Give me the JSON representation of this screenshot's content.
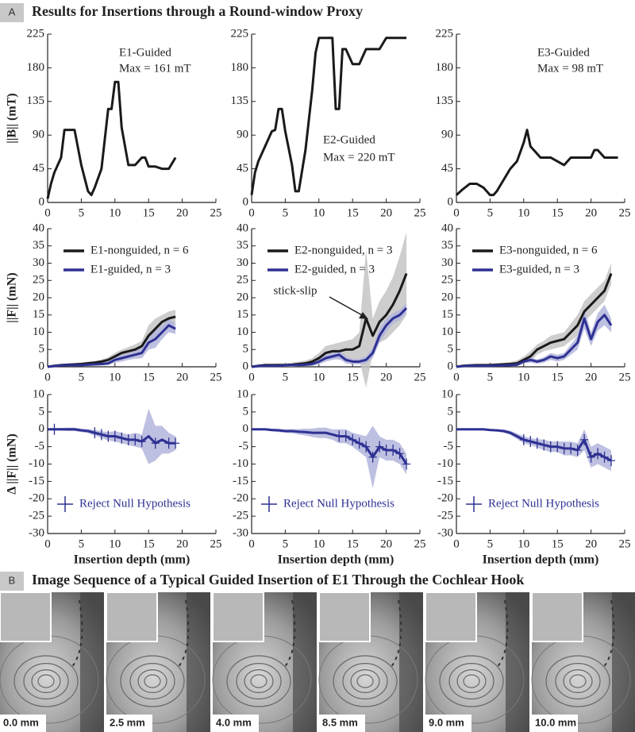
{
  "panel_a": {
    "label": "A",
    "title": "Results for Insertions through a Round-window Proxy"
  },
  "panel_b": {
    "label": "B",
    "title": "Image Sequence of a Typical Guided Insertion of E1 Through the Cochlear Hook",
    "captions": [
      "0.0 mm",
      "2.5 mm",
      "4.0 mm",
      "8.5 mm",
      "9.0 mm",
      "10.0 mm"
    ]
  },
  "chart_data": [
    {
      "type": "line",
      "ylabel": "||B|| (mT)",
      "annotations": [
        "E1-Guided",
        "Max = 161 mT"
      ],
      "x": [
        0,
        0.5,
        1,
        2,
        2.5,
        4,
        5,
        6,
        6.5,
        7,
        8,
        9,
        9.5,
        10,
        10.5,
        11,
        12,
        13,
        14,
        14.5,
        15,
        16,
        17,
        18,
        19
      ],
      "series": [
        {
          "color": "#1a1a1a",
          "values": [
            5,
            25,
            40,
            60,
            97,
            97,
            50,
            15,
            10,
            20,
            45,
            125,
            125,
            161,
            161,
            100,
            50,
            50,
            60,
            60,
            48,
            48,
            45,
            45,
            60
          ]
        }
      ],
      "xlim": [
        0,
        25
      ],
      "xticks": [
        0,
        5,
        10,
        15,
        20,
        25
      ],
      "ylim": [
        0,
        225
      ],
      "yticks": [
        0,
        45,
        90,
        135,
        180,
        225
      ]
    },
    {
      "type": "line",
      "annotations": [
        "E2-Guided",
        "Max = 220 mT"
      ],
      "x": [
        0,
        0.5,
        1,
        2,
        3,
        3.5,
        4,
        4.5,
        5,
        6,
        6.5,
        7,
        8,
        9,
        9.5,
        10,
        11,
        12,
        12.5,
        13,
        13.5,
        14,
        15,
        16,
        17,
        18,
        19,
        20,
        21,
        23
      ],
      "series": [
        {
          "color": "#1a1a1a",
          "values": [
            10,
            40,
            55,
            75,
            95,
            97,
            125,
            125,
            95,
            50,
            15,
            15,
            70,
            150,
            200,
            220,
            220,
            220,
            125,
            125,
            205,
            205,
            185,
            185,
            205,
            205,
            205,
            220,
            220,
            220
          ]
        }
      ],
      "xlim": [
        0,
        25
      ],
      "xticks": [
        0,
        5,
        10,
        15,
        20,
        25
      ],
      "ylim": [
        0,
        225
      ],
      "yticks": [
        0,
        45,
        90,
        135,
        180,
        225
      ]
    },
    {
      "type": "line",
      "annotations": [
        "E3-Guided",
        "Max = 98 mT"
      ],
      "x": [
        0,
        1,
        2,
        3,
        4,
        5,
        5.5,
        6,
        7,
        8,
        9,
        10,
        10.5,
        11,
        12,
        12.5,
        13,
        14,
        15,
        16,
        17,
        18,
        19,
        20,
        20.5,
        21,
        22,
        23,
        24
      ],
      "series": [
        {
          "color": "#1a1a1a",
          "values": [
            10,
            18,
            25,
            25,
            20,
            10,
            10,
            15,
            30,
            45,
            55,
            80,
            97,
            75,
            65,
            60,
            60,
            60,
            55,
            50,
            60,
            60,
            60,
            60,
            70,
            70,
            60,
            60,
            60
          ]
        }
      ],
      "xlim": [
        0,
        25
      ],
      "xticks": [
        0,
        5,
        10,
        15,
        20,
        25
      ],
      "ylim": [
        0,
        225
      ],
      "yticks": [
        0,
        45,
        90,
        135,
        180,
        225
      ]
    },
    {
      "type": "line",
      "ylabel": "||F|| (mN)",
      "x": [
        0,
        1,
        2,
        3,
        4,
        5,
        6,
        7,
        8,
        9,
        10,
        11,
        12,
        13,
        14,
        15,
        16,
        17,
        18,
        19
      ],
      "series": [
        {
          "name": "E1-nonguided, n = 6",
          "color": "#1a1a1a",
          "band_color": "#c4c4c4",
          "values": [
            0,
            0.3,
            0.5,
            0.6,
            0.7,
            0.8,
            1,
            1.2,
            1.5,
            2,
            3,
            4,
            4.5,
            5,
            6,
            9,
            11,
            13,
            14,
            14.5
          ],
          "band": [
            0,
            0.2,
            0.3,
            0.3,
            0.4,
            0.4,
            0.5,
            0.5,
            0.6,
            0.8,
            1,
            1,
            1.2,
            1.5,
            1.5,
            3,
            3,
            2,
            2,
            2
          ]
        },
        {
          "name": "E1-guided, n = 3",
          "color": "#2e3192",
          "band_color": "#b3b5dc",
          "values": [
            0,
            0.2,
            0.4,
            0.5,
            0.5,
            0.5,
            0.6,
            0.7,
            0.8,
            1,
            2,
            2.5,
            3,
            3.5,
            4,
            7,
            8,
            10,
            12,
            11
          ],
          "band": [
            0,
            0.1,
            0.2,
            0.2,
            0.2,
            0.3,
            0.3,
            0.3,
            0.4,
            0.5,
            0.8,
            1,
            1,
            1.2,
            1.5,
            2,
            2.5,
            2,
            2,
            1.5
          ]
        }
      ],
      "xlim": [
        0,
        25
      ],
      "xticks": [
        0,
        5,
        10,
        15,
        20,
        25
      ],
      "ylim": [
        0,
        40
      ],
      "yticks": [
        0,
        5,
        10,
        15,
        20,
        25,
        30,
        35,
        40
      ]
    },
    {
      "type": "line",
      "annotations": [
        "stick-slip"
      ],
      "x": [
        0,
        1,
        2,
        3,
        4,
        5,
        6,
        7,
        8,
        9,
        10,
        11,
        12,
        13,
        14,
        15,
        16,
        17,
        18,
        19,
        20,
        21,
        22,
        23
      ],
      "series": [
        {
          "name": "E2-nonguided, n = 3",
          "color": "#1a1a1a",
          "band_color": "#c4c4c4",
          "values": [
            0,
            0.3,
            0.5,
            0.5,
            0.5,
            0.5,
            0.6,
            0.8,
            1,
            1.5,
            2.5,
            4,
            4.5,
            4.5,
            5,
            5,
            6,
            14,
            9,
            13,
            15,
            18,
            22,
            27
          ],
          "band": [
            0,
            0.3,
            0.4,
            0.4,
            0.5,
            0.5,
            0.6,
            0.7,
            0.8,
            1,
            1.5,
            2,
            2,
            2.5,
            2.5,
            3,
            4,
            20,
            5,
            6,
            7,
            8,
            10,
            12
          ]
        },
        {
          "name": "E2-guided, n = 3",
          "color": "#2e3192",
          "band_color": "#b3b5dc",
          "values": [
            0,
            0.2,
            0.3,
            0.3,
            0.3,
            0.4,
            0.5,
            0.5,
            0.6,
            0.8,
            1.5,
            2.5,
            3,
            3.5,
            2,
            1.5,
            1.5,
            2,
            4,
            9,
            12,
            14,
            15,
            17
          ],
          "band": [
            0,
            0.1,
            0.2,
            0.2,
            0.2,
            0.2,
            0.3,
            0.3,
            0.4,
            0.5,
            0.8,
            1,
            1,
            1.2,
            1,
            0.8,
            0.8,
            1,
            1.5,
            2,
            2,
            1.5,
            1.5,
            1.5
          ]
        }
      ],
      "xlim": [
        0,
        25
      ],
      "xticks": [
        0,
        5,
        10,
        15,
        20,
        25
      ],
      "ylim": [
        0,
        40
      ],
      "yticks": [
        0,
        5,
        10,
        15,
        20,
        25,
        30,
        35,
        40
      ]
    },
    {
      "type": "line",
      "x": [
        0,
        1,
        2,
        3,
        4,
        5,
        6,
        7,
        8,
        9,
        10,
        11,
        12,
        13,
        14,
        15,
        16,
        17,
        18,
        19,
        20,
        21,
        22,
        23
      ],
      "series": [
        {
          "name": "E3-nonguided, n = 6",
          "color": "#1a1a1a",
          "band_color": "#c4c4c4",
          "values": [
            0,
            0.3,
            0.4,
            0.5,
            0.5,
            0.5,
            0.6,
            0.7,
            0.8,
            1,
            2,
            3,
            5,
            6,
            7,
            7.5,
            8,
            10,
            12,
            16,
            18,
            20,
            22,
            27
          ],
          "band": [
            0,
            0.2,
            0.3,
            0.3,
            0.3,
            0.4,
            0.4,
            0.5,
            0.6,
            0.8,
            1,
            1.5,
            1.5,
            1.5,
            2,
            2,
            2,
            2.5,
            3,
            3,
            3,
            3,
            3,
            3
          ]
        },
        {
          "name": "E3-guided, n = 3",
          "color": "#2e3192",
          "band_color": "#b3b5dc",
          "values": [
            0,
            0.2,
            0.3,
            0.3,
            0.3,
            0.3,
            0.4,
            0.4,
            0.5,
            0.6,
            1.5,
            2,
            1.5,
            2,
            3,
            2.5,
            3,
            5,
            7,
            14,
            8,
            13,
            15,
            12
          ],
          "band": [
            0,
            0.1,
            0.2,
            0.2,
            0.2,
            0.2,
            0.2,
            0.3,
            0.3,
            0.4,
            0.5,
            0.8,
            0.6,
            0.8,
            1,
            1,
            1,
            1.5,
            2,
            3,
            2,
            2.5,
            3,
            2
          ]
        }
      ],
      "xlim": [
        0,
        25
      ],
      "xticks": [
        0,
        5,
        10,
        15,
        20,
        25
      ],
      "ylim": [
        0,
        40
      ],
      "yticks": [
        0,
        5,
        10,
        15,
        20,
        25,
        30,
        35,
        40
      ]
    },
    {
      "type": "line",
      "ylabel": "Δ ||F|| (mN)",
      "xlabel": "Insertion depth (mm)",
      "x": [
        0,
        1,
        2,
        3,
        4,
        5,
        6,
        7,
        8,
        9,
        10,
        11,
        12,
        13,
        14,
        15,
        16,
        17,
        18,
        19
      ],
      "series": [
        {
          "color": "#2e3192",
          "band_color": "#b3b5dc",
          "values": [
            0,
            0,
            0,
            0,
            0,
            -0.3,
            -0.5,
            -1,
            -1.5,
            -2,
            -2,
            -2.5,
            -3,
            -3,
            -3.5,
            -2,
            -4,
            -3,
            -4,
            -4
          ],
          "band": [
            0,
            0.3,
            0.4,
            0.5,
            0.5,
            0.5,
            0.6,
            0.8,
            1,
            1.2,
            1.5,
            1.5,
            1.5,
            2,
            2,
            8,
            5,
            4,
            3,
            2
          ]
        }
      ],
      "markers": {
        "name": "Reject Null Hypothesis",
        "color": "#2e3192",
        "x": [
          1,
          7,
          8,
          9,
          10,
          11,
          12,
          13,
          14,
          16,
          18,
          19
        ],
        "values": [
          0,
          -1,
          -1.5,
          -2,
          -2,
          -2.5,
          -3,
          -3,
          -3.5,
          -4,
          -4,
          -4
        ]
      },
      "xlim": [
        0,
        25
      ],
      "xticks": [
        0,
        5,
        10,
        15,
        20,
        25
      ],
      "ylim": [
        -30,
        10
      ],
      "yticks": [
        -30,
        -25,
        -20,
        -15,
        -10,
        -5,
        0,
        5,
        10
      ]
    },
    {
      "type": "line",
      "xlabel": "Insertion depth (mm)",
      "x": [
        0,
        1,
        2,
        3,
        4,
        5,
        6,
        7,
        8,
        9,
        10,
        11,
        12,
        13,
        14,
        15,
        16,
        17,
        18,
        19,
        20,
        21,
        22,
        23
      ],
      "series": [
        {
          "color": "#2e3192",
          "band_color": "#b3b5dc",
          "values": [
            0,
            0,
            0,
            -0.2,
            -0.3,
            -0.5,
            -0.5,
            -0.7,
            -0.8,
            -1,
            -1,
            -1,
            -1.5,
            -2,
            -2,
            -3,
            -4,
            -5,
            -8,
            -5,
            -6,
            -6,
            -7,
            -10
          ],
          "band": [
            0,
            0.2,
            0.3,
            0.4,
            0.5,
            0.5,
            0.6,
            0.8,
            1,
            1.2,
            1.5,
            1.5,
            1.5,
            2,
            2,
            2,
            2.5,
            3,
            9,
            3,
            3,
            3,
            3,
            3
          ]
        }
      ],
      "markers": {
        "name": "Reject Null Hypothesis",
        "color": "#2e3192",
        "x": [
          13,
          14,
          15,
          16,
          17,
          18,
          19,
          20,
          21,
          22,
          23
        ],
        "values": [
          -2,
          -2,
          -3,
          -4,
          -5,
          -8,
          -5,
          -6,
          -6,
          -7,
          -10
        ]
      },
      "xlim": [
        0,
        25
      ],
      "xticks": [
        0,
        5,
        10,
        15,
        20,
        25
      ],
      "ylim": [
        -30,
        10
      ],
      "yticks": [
        -30,
        -25,
        -20,
        -15,
        -10,
        -5,
        0,
        5,
        10
      ]
    },
    {
      "type": "line",
      "xlabel": "Insertion depth (mm)",
      "x": [
        0,
        1,
        2,
        3,
        4,
        5,
        6,
        7,
        8,
        9,
        10,
        11,
        12,
        13,
        14,
        15,
        16,
        17,
        18,
        19,
        20,
        21,
        22,
        23
      ],
      "series": [
        {
          "color": "#2e3192",
          "band_color": "#b3b5dc",
          "values": [
            0,
            0,
            0,
            0,
            0,
            -0.2,
            -0.3,
            -0.5,
            -1,
            -2,
            -3,
            -3.5,
            -4,
            -4.5,
            -5,
            -5,
            -5.5,
            -5.5,
            -6,
            -3,
            -8,
            -7,
            -8,
            -9
          ],
          "band": [
            0,
            0.2,
            0.3,
            0.3,
            0.3,
            0.3,
            0.4,
            0.5,
            0.6,
            0.8,
            1,
            1,
            1.2,
            1.5,
            1.5,
            1.5,
            2,
            2,
            2,
            3,
            3,
            3,
            3,
            3
          ]
        }
      ],
      "markers": {
        "name": "Reject Null Hypothesis",
        "color": "#2e3192",
        "x": [
          10,
          11,
          12,
          13,
          14,
          15,
          16,
          17,
          18,
          19,
          20,
          21,
          22,
          23
        ],
        "values": [
          -3,
          -3.5,
          -4,
          -4.5,
          -5,
          -5,
          -5.5,
          -5.5,
          -6,
          -3,
          -8,
          -7,
          -8,
          -9
        ]
      },
      "xlim": [
        0,
        25
      ],
      "xticks": [
        0,
        5,
        10,
        15,
        20,
        25
      ],
      "ylim": [
        -30,
        10
      ],
      "yticks": [
        -30,
        -25,
        -20,
        -15,
        -10,
        -5,
        0,
        5,
        10
      ]
    }
  ]
}
